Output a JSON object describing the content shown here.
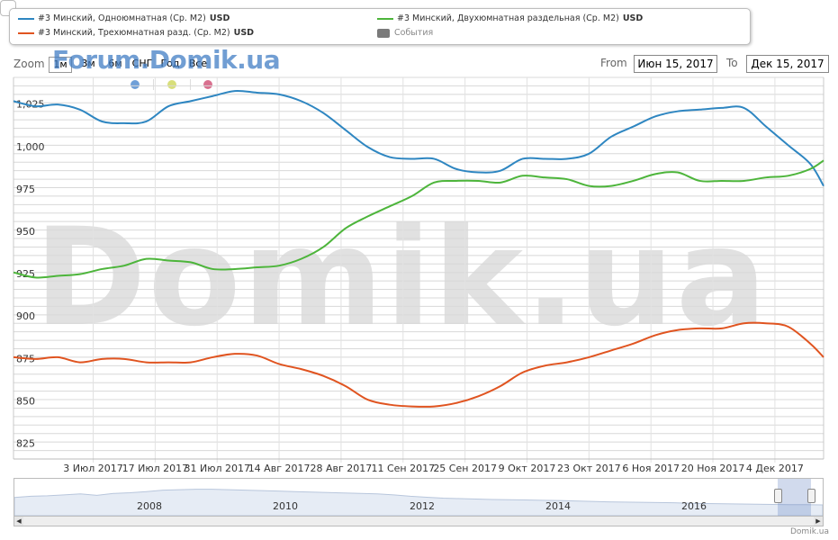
{
  "legend": {
    "items": [
      {
        "label": "#3 Минский, Одноюмнатная (Ср. М2)",
        "unit": "USD",
        "color": "#2e86c1"
      },
      {
        "label": "#3 Минский, Двухюмнатная раздельная (Ср. М2)",
        "unit": "USD",
        "color": "#4db53b"
      },
      {
        "label": "#3 Минский, Трехюмнатная разд. (Ср. М2)",
        "unit": "USD",
        "color": "#e05420"
      },
      {
        "label": "События",
        "unit": "",
        "color": "#7a7a7a"
      }
    ]
  },
  "toolbar": {
    "zoom_label": "Zoom",
    "buttons": [
      "1м",
      "3м",
      "6м",
      "СНГ",
      "Год",
      "Все"
    ],
    "from_label": "From",
    "from_value": "Июн 15, 2017",
    "to_label": "To",
    "to_value": "Дек 15, 2017"
  },
  "watermarks": {
    "small": "Forum.Domik.ua",
    "big": "Domik.ua"
  },
  "event_dot_colors": [
    "#6f9fd8",
    "#d8df7a",
    "#d9708f"
  ],
  "navigator": {
    "year_labels": [
      "2008",
      "2010",
      "2012",
      "2014",
      "2016"
    ]
  },
  "credit": "Domik.ua",
  "chart_data": {
    "type": "line",
    "ylim": [
      820,
      1045
    ],
    "y_ticks": [
      825,
      850,
      875,
      900,
      925,
      950,
      975,
      1000,
      1025
    ],
    "y_tick_labels": [
      "825",
      "850",
      "875",
      "900",
      "925",
      "950",
      "975",
      "1,000",
      "1,025"
    ],
    "x_ticks": [
      "3 Июл 2017",
      "17 Июл 2017",
      "31 Июл 2017",
      "14 Авг 2017",
      "28 Авг 2017",
      "11 Сен 2017",
      "25 Сен 2017",
      "9 Окт 2017",
      "23 Окт 2017",
      "6 Ноя 2017",
      "20 Ноя 2017",
      "4 Дек 2017"
    ],
    "x_tick_dates": [
      "2017-07-03",
      "2017-07-17",
      "2017-07-31",
      "2017-08-14",
      "2017-08-28",
      "2017-09-11",
      "2017-09-25",
      "2017-10-09",
      "2017-10-23",
      "2017-11-06",
      "2017-11-20",
      "2017-12-04"
    ],
    "xlim": [
      "2017-06-15",
      "2017-12-15"
    ],
    "series": [
      {
        "name": "#3 Минский, Одноюмнатная (Ср. М2)",
        "color": "#2e86c1",
        "points": [
          [
            "2017-06-15",
            1031
          ],
          [
            "2017-06-20",
            1028
          ],
          [
            "2017-06-25",
            1029
          ],
          [
            "2017-06-30",
            1026
          ],
          [
            "2017-07-05",
            1019
          ],
          [
            "2017-07-10",
            1018
          ],
          [
            "2017-07-15",
            1019
          ],
          [
            "2017-07-20",
            1028
          ],
          [
            "2017-07-25",
            1031
          ],
          [
            "2017-07-30",
            1034
          ],
          [
            "2017-08-04",
            1037
          ],
          [
            "2017-08-09",
            1036
          ],
          [
            "2017-08-14",
            1035
          ],
          [
            "2017-08-19",
            1031
          ],
          [
            "2017-08-24",
            1024
          ],
          [
            "2017-08-29",
            1014
          ],
          [
            "2017-09-03",
            1004
          ],
          [
            "2017-09-08",
            998
          ],
          [
            "2017-09-13",
            997
          ],
          [
            "2017-09-18",
            997
          ],
          [
            "2017-09-23",
            991
          ],
          [
            "2017-09-28",
            989
          ],
          [
            "2017-10-03",
            990
          ],
          [
            "2017-10-08",
            997
          ],
          [
            "2017-10-13",
            997
          ],
          [
            "2017-10-18",
            997
          ],
          [
            "2017-10-23",
            1000
          ],
          [
            "2017-10-28",
            1010
          ],
          [
            "2017-11-02",
            1016
          ],
          [
            "2017-11-07",
            1022
          ],
          [
            "2017-11-12",
            1025
          ],
          [
            "2017-11-17",
            1026
          ],
          [
            "2017-11-22",
            1027
          ],
          [
            "2017-11-27",
            1027
          ],
          [
            "2017-12-02",
            1016
          ],
          [
            "2017-12-07",
            1005
          ],
          [
            "2017-12-12",
            994
          ],
          [
            "2017-12-15",
            981
          ]
        ]
      },
      {
        "name": "#3 Минский, Двухюмнатная раздельная (Ср. М2)",
        "color": "#4db53b",
        "points": [
          [
            "2017-06-15",
            930
          ],
          [
            "2017-06-20",
            927
          ],
          [
            "2017-06-25",
            928
          ],
          [
            "2017-06-30",
            929
          ],
          [
            "2017-07-05",
            932
          ],
          [
            "2017-07-10",
            934
          ],
          [
            "2017-07-15",
            938
          ],
          [
            "2017-07-20",
            937
          ],
          [
            "2017-07-25",
            936
          ],
          [
            "2017-07-30",
            932
          ],
          [
            "2017-08-04",
            932
          ],
          [
            "2017-08-09",
            933
          ],
          [
            "2017-08-14",
            934
          ],
          [
            "2017-08-19",
            938
          ],
          [
            "2017-08-24",
            945
          ],
          [
            "2017-08-29",
            956
          ],
          [
            "2017-09-03",
            963
          ],
          [
            "2017-09-08",
            969
          ],
          [
            "2017-09-13",
            975
          ],
          [
            "2017-09-18",
            983
          ],
          [
            "2017-09-23",
            984
          ],
          [
            "2017-09-28",
            984
          ],
          [
            "2017-10-03",
            983
          ],
          [
            "2017-10-08",
            987
          ],
          [
            "2017-10-13",
            986
          ],
          [
            "2017-10-18",
            985
          ],
          [
            "2017-10-23",
            981
          ],
          [
            "2017-10-28",
            981
          ],
          [
            "2017-11-02",
            984
          ],
          [
            "2017-11-07",
            988
          ],
          [
            "2017-11-12",
            989
          ],
          [
            "2017-11-17",
            984
          ],
          [
            "2017-11-22",
            984
          ],
          [
            "2017-11-27",
            984
          ],
          [
            "2017-12-02",
            986
          ],
          [
            "2017-12-07",
            987
          ],
          [
            "2017-12-12",
            991
          ],
          [
            "2017-12-15",
            996
          ]
        ]
      },
      {
        "name": "#3 Минский, Трехюмнатная разд. (Ср. М2)",
        "color": "#e05420",
        "points": [
          [
            "2017-06-15",
            880
          ],
          [
            "2017-06-20",
            879
          ],
          [
            "2017-06-25",
            880
          ],
          [
            "2017-06-30",
            877
          ],
          [
            "2017-07-05",
            879
          ],
          [
            "2017-07-10",
            879
          ],
          [
            "2017-07-15",
            877
          ],
          [
            "2017-07-20",
            877
          ],
          [
            "2017-07-25",
            877
          ],
          [
            "2017-07-30",
            880
          ],
          [
            "2017-08-04",
            882
          ],
          [
            "2017-08-09",
            881
          ],
          [
            "2017-08-14",
            876
          ],
          [
            "2017-08-19",
            873
          ],
          [
            "2017-08-24",
            869
          ],
          [
            "2017-08-29",
            863
          ],
          [
            "2017-09-03",
            855
          ],
          [
            "2017-09-08",
            852
          ],
          [
            "2017-09-13",
            851
          ],
          [
            "2017-09-18",
            851
          ],
          [
            "2017-09-23",
            853
          ],
          [
            "2017-09-28",
            857
          ],
          [
            "2017-10-03",
            863
          ],
          [
            "2017-10-08",
            871
          ],
          [
            "2017-10-13",
            875
          ],
          [
            "2017-10-18",
            877
          ],
          [
            "2017-10-23",
            880
          ],
          [
            "2017-10-28",
            884
          ],
          [
            "2017-11-02",
            888
          ],
          [
            "2017-11-07",
            893
          ],
          [
            "2017-11-12",
            896
          ],
          [
            "2017-11-17",
            897
          ],
          [
            "2017-11-22",
            897
          ],
          [
            "2017-11-27",
            900
          ],
          [
            "2017-12-02",
            900
          ],
          [
            "2017-12-07",
            898
          ],
          [
            "2017-12-12",
            888
          ],
          [
            "2017-12-15",
            880
          ]
        ]
      }
    ],
    "navigator_ylim": [
      0,
      1
    ],
    "navigator_series": [
      0.55,
      0.6,
      0.62,
      0.66,
      0.7,
      0.64,
      0.72,
      0.75,
      0.8,
      0.86,
      0.88,
      0.9,
      0.9,
      0.88,
      0.86,
      0.84,
      0.82,
      0.8,
      0.78,
      0.76,
      0.74,
      0.72,
      0.7,
      0.66,
      0.6,
      0.56,
      0.52,
      0.5,
      0.48,
      0.46,
      0.45,
      0.44,
      0.43,
      0.42,
      0.4,
      0.38,
      0.36,
      0.35,
      0.34,
      0.33,
      0.32,
      0.3,
      0.29,
      0.28,
      0.27,
      0.26,
      0.25,
      0.24,
      0.24,
      0.23
    ]
  }
}
